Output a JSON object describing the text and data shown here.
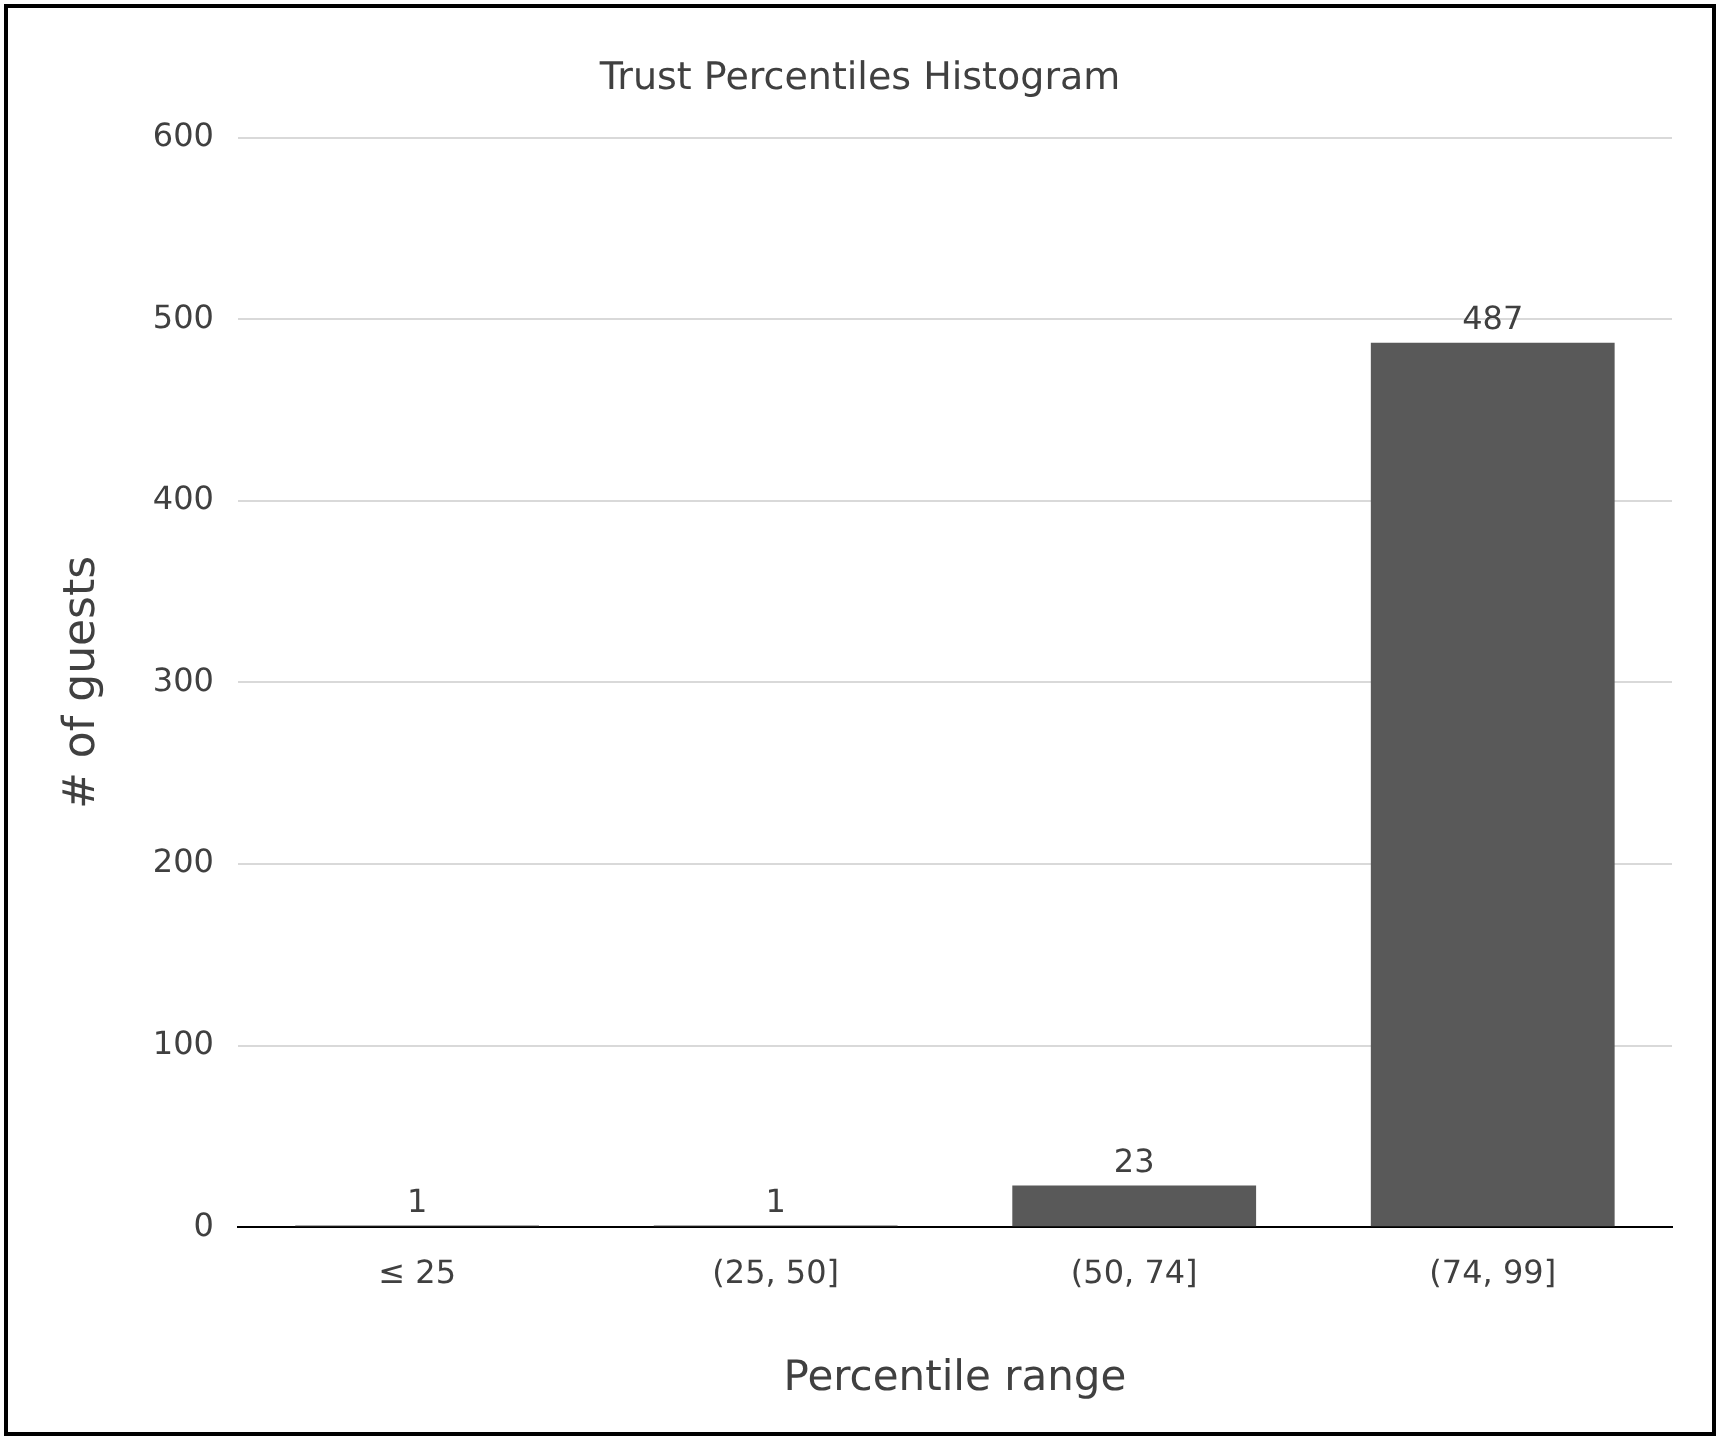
{
  "chart_data": {
    "type": "bar",
    "title": "Trust Percentiles Histogram",
    "xlabel": "Percentile range",
    "ylabel": "# of guests",
    "categories": [
      "≤ 25",
      "(25, 50]",
      "(50, 74]",
      "(74, 99]"
    ],
    "values": [
      1,
      1,
      23,
      487
    ],
    "color": "#595959",
    "ylim": [
      0,
      600
    ],
    "yticks": [
      0,
      100,
      200,
      300,
      400,
      500,
      600
    ],
    "grid": "y",
    "legend": false,
    "data_labels": true
  }
}
